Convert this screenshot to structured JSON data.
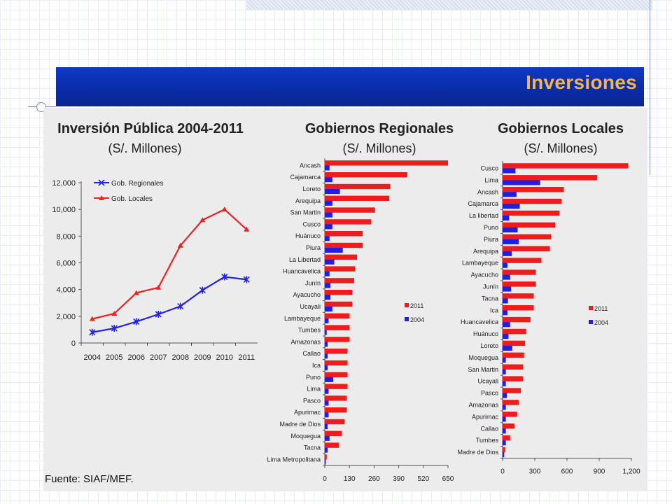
{
  "slide": {
    "title": "Inversiones",
    "source": "Fuente: SIAF/MEF."
  },
  "chart_data": [
    {
      "type": "line",
      "title": "Inversión Pública 2004-2011",
      "subtitle": "(S/. Millones)",
      "x": [
        "2004",
        "2005",
        "2006",
        "2007",
        "2008",
        "2009",
        "2010",
        "2011"
      ],
      "ylim": [
        0,
        12000
      ],
      "yticks": [
        "0",
        "2,000",
        "4,000",
        "6,000",
        "8,000",
        "10,000",
        "12,000"
      ],
      "legend_position": "upper-left",
      "series": [
        {
          "name": "Gob. Regionales",
          "color": "#2222ee",
          "marker": "x",
          "values": [
            800,
            1100,
            1600,
            2150,
            2750,
            3950,
            4950,
            4750
          ]
        },
        {
          "name": "Gob. Locales",
          "color": "#ee2222",
          "marker": "triangle",
          "values": [
            1800,
            2200,
            3750,
            4150,
            7300,
            9200,
            10000,
            8500
          ]
        }
      ]
    },
    {
      "type": "bar",
      "orientation": "horizontal",
      "title": "Gobiernos Regionales",
      "subtitle": "(S/. Millones)",
      "categories": [
        "Ancash",
        "Cajamarca",
        "Loreto",
        "Arequipa",
        "San Martin",
        "Cusco",
        "Huánuco",
        "Piura",
        "La Libertad",
        "Huancavelica",
        "Junín",
        "Ayacucho",
        "Ucayali",
        "Lambayeque",
        "Tumbes",
        "Amazonas",
        "Callao",
        "Ica",
        "Puno",
        "Lima",
        "Pasco",
        "Apurimac",
        "Madre de Dios",
        "Moquegua",
        "Tacna",
        "Lima Metropolitana"
      ],
      "xlim": [
        0,
        650
      ],
      "xticks": [
        "0",
        "130",
        "260",
        "390",
        "520",
        "650"
      ],
      "legend_position": "right",
      "series": [
        {
          "name": "2011",
          "color": "#ee1c1c",
          "values": [
            650,
            435,
            345,
            340,
            265,
            245,
            200,
            200,
            170,
            160,
            155,
            145,
            145,
            130,
            130,
            130,
            120,
            120,
            120,
            120,
            115,
            115,
            105,
            90,
            75,
            10
          ]
        },
        {
          "name": "2004",
          "color": "#1f1fdd",
          "values": [
            25,
            40,
            80,
            40,
            40,
            40,
            25,
            95,
            50,
            25,
            30,
            30,
            40,
            20,
            10,
            15,
            15,
            15,
            45,
            20,
            20,
            20,
            15,
            25,
            15,
            5
          ]
        }
      ]
    },
    {
      "type": "bar",
      "orientation": "horizontal",
      "title": "Gobiernos Locales",
      "subtitle": "(S/. Millones)",
      "categories": [
        "Cusco",
        "Lima",
        "Ancash",
        "Cajamarca",
        "La libertad",
        "Puno",
        "Piura",
        "Arequipa",
        "Lambayeque",
        "Ayacucho",
        "Junín",
        "Tacna",
        "Ica",
        "Huancavelica",
        "Huánuco",
        "Loreto",
        "Moquegua",
        "San Martin",
        "Ucayali",
        "Pasco",
        "Amazonas",
        "Apurimac",
        "Callao",
        "Tumbes",
        "Madre de Dios"
      ],
      "xlim": [
        0,
        1200
      ],
      "xticks": [
        "0",
        "300",
        "600",
        "900",
        "1,200"
      ],
      "legend_position": "right",
      "series": [
        {
          "name": "2011",
          "color": "#ee1c1c",
          "values": [
            1170,
            880,
            570,
            550,
            530,
            490,
            450,
            440,
            360,
            310,
            310,
            290,
            290,
            260,
            220,
            210,
            200,
            190,
            190,
            170,
            150,
            135,
            110,
            70,
            25
          ]
        },
        {
          "name": "2004",
          "color": "#1f1fdd",
          "values": [
            120,
            350,
            130,
            160,
            60,
            140,
            150,
            85,
            45,
            70,
            80,
            50,
            45,
            70,
            55,
            90,
            30,
            30,
            30,
            40,
            30,
            30,
            30,
            30,
            15
          ]
        }
      ]
    }
  ]
}
